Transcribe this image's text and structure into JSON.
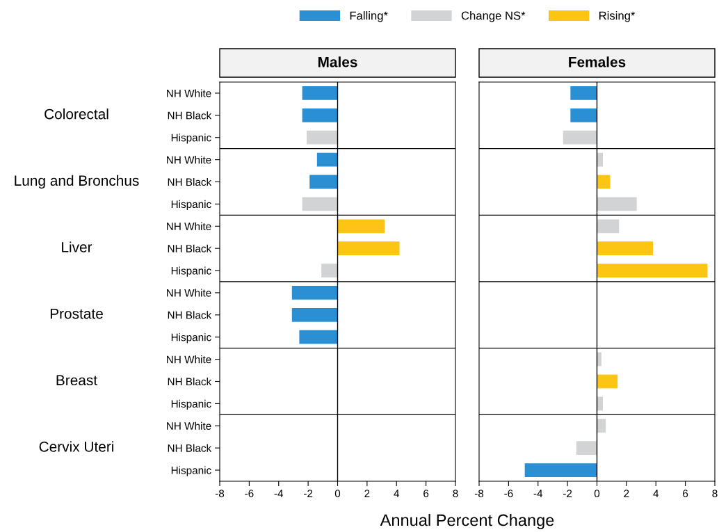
{
  "chart_data": [
    {
      "type": "bar",
      "orientation": "horizontal",
      "title": "Males",
      "categories": [
        "NH White",
        "NH Black",
        "Hispanic",
        "NH White",
        "NH Black",
        "Hispanic",
        "NH White",
        "NH Black",
        "Hispanic",
        "NH White",
        "NH Black",
        "Hispanic",
        "NH White",
        "NH Black",
        "Hispanic",
        "NH White",
        "NH Black",
        "Hispanic"
      ],
      "series": [
        {
          "name": "Falling*",
          "color": "#2b8fd3",
          "values": [
            -2.4,
            -2.4,
            null,
            -1.4,
            -1.9,
            null,
            null,
            null,
            null,
            -3.1,
            -3.1,
            -2.6,
            null,
            null,
            null,
            null,
            null,
            null
          ]
        },
        {
          "name": "Change NS*",
          "color": "#d1d3d4",
          "values": [
            null,
            null,
            -2.1,
            null,
            null,
            -2.4,
            null,
            null,
            -1.1,
            null,
            null,
            null,
            null,
            null,
            null,
            null,
            null,
            null
          ]
        },
        {
          "name": "Rising*",
          "color": "#fdc513",
          "values": [
            null,
            null,
            null,
            null,
            null,
            null,
            3.2,
            4.2,
            null,
            null,
            null,
            null,
            null,
            null,
            null,
            null,
            null,
            null
          ]
        }
      ],
      "annotations": [
        "Colorectal",
        "Lung and Bronchus",
        "Liver",
        "Prostate",
        "Breast",
        "Cervix Uteri"
      ],
      "xlabel": "Annual Percent Change",
      "xlim": [
        -8,
        8
      ],
      "xticks": [
        -8,
        -6,
        -4,
        -2,
        0,
        2,
        4,
        6,
        8
      ],
      "ref_lines": [
        {
          "axis": "x",
          "value": 0
        }
      ],
      "legend": "top"
    },
    {
      "type": "bar",
      "orientation": "horizontal",
      "title": "Females",
      "categories": [
        "NH White",
        "NH Black",
        "Hispanic",
        "NH White",
        "NH Black",
        "Hispanic",
        "NH White",
        "NH Black",
        "Hispanic",
        "NH White",
        "NH Black",
        "Hispanic",
        "NH White",
        "NH Black",
        "Hispanic",
        "NH White",
        "NH Black",
        "Hispanic"
      ],
      "series": [
        {
          "name": "Falling*",
          "color": "#2b8fd3",
          "values": [
            -1.8,
            -1.8,
            null,
            null,
            null,
            null,
            null,
            null,
            null,
            null,
            null,
            null,
            null,
            null,
            null,
            null,
            null,
            -4.9
          ]
        },
        {
          "name": "Change NS*",
          "color": "#d1d3d4",
          "values": [
            null,
            null,
            -2.3,
            0.4,
            null,
            2.7,
            1.5,
            null,
            null,
            null,
            null,
            null,
            0.3,
            null,
            0.4,
            0.6,
            -1.4,
            null
          ]
        },
        {
          "name": "Rising*",
          "color": "#fdc513",
          "values": [
            null,
            null,
            null,
            null,
            0.9,
            null,
            null,
            3.8,
            7.5,
            null,
            null,
            null,
            null,
            1.4,
            null,
            null,
            null,
            null
          ]
        }
      ],
      "xlim": [
        -8,
        8
      ],
      "xticks": [
        -8,
        -6,
        -4,
        -2,
        0,
        2,
        4,
        6,
        8
      ],
      "ref_lines": [
        {
          "axis": "x",
          "value": 0
        }
      ],
      "tick_labels": "x"
    }
  ]
}
